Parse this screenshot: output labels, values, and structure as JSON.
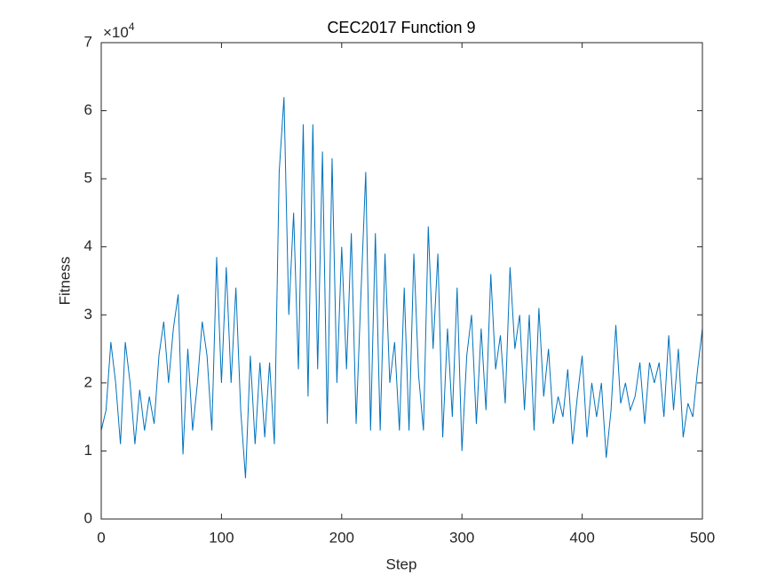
{
  "chart_data": {
    "type": "line",
    "title": "CEC2017 Function 9",
    "x_label": "Step",
    "y_label": "Fitness",
    "y_multiplier": {
      "base": "×10",
      "exponent": "4"
    },
    "x": [
      0,
      4,
      8,
      12,
      16,
      20,
      24,
      28,
      32,
      36,
      40,
      44,
      48,
      52,
      56,
      60,
      64,
      68,
      72,
      76,
      80,
      84,
      88,
      92,
      96,
      100,
      104,
      108,
      112,
      116,
      120,
      124,
      128,
      132,
      136,
      140,
      144,
      148,
      152,
      156,
      160,
      164,
      168,
      172,
      176,
      180,
      184,
      188,
      192,
      196,
      200,
      204,
      208,
      212,
      216,
      220,
      224,
      228,
      232,
      236,
      240,
      244,
      248,
      252,
      256,
      260,
      264,
      268,
      272,
      276,
      280,
      284,
      288,
      292,
      296,
      300,
      304,
      308,
      312,
      316,
      320,
      324,
      328,
      332,
      336,
      340,
      344,
      348,
      352,
      356,
      360,
      364,
      368,
      372,
      376,
      380,
      384,
      388,
      392,
      396,
      400,
      404,
      408,
      412,
      416,
      420,
      424,
      428,
      432,
      436,
      440,
      444,
      448,
      452,
      456,
      460,
      464,
      468,
      472,
      476,
      480,
      484,
      488,
      492,
      496,
      500
    ],
    "series": [
      {
        "name": "Fitness",
        "color": "#0072bd",
        "values": [
          1.3,
          1.6,
          2.6,
          2.0,
          1.1,
          2.6,
          2.0,
          1.1,
          1.9,
          1.3,
          1.8,
          1.4,
          2.4,
          2.9,
          2.0,
          2.8,
          3.3,
          0.95,
          2.5,
          1.3,
          2.0,
          2.9,
          2.4,
          1.3,
          3.85,
          2.0,
          3.7,
          2.0,
          3.4,
          1.6,
          0.6,
          2.4,
          1.1,
          2.3,
          1.2,
          2.3,
          1.1,
          5.1,
          6.2,
          3.0,
          4.5,
          2.2,
          5.8,
          1.8,
          5.8,
          2.2,
          5.4,
          1.4,
          5.3,
          2.0,
          4.0,
          2.2,
          4.2,
          1.4,
          3.3,
          5.1,
          1.3,
          4.2,
          1.3,
          3.9,
          2.0,
          2.6,
          1.3,
          3.4,
          1.3,
          3.9,
          2.1,
          1.3,
          4.3,
          2.5,
          3.9,
          1.2,
          2.8,
          1.5,
          3.4,
          1.0,
          2.4,
          3.0,
          1.4,
          2.8,
          1.6,
          3.6,
          2.2,
          2.7,
          1.7,
          3.7,
          2.5,
          3.0,
          1.6,
          3.0,
          1.3,
          3.1,
          1.8,
          2.5,
          1.4,
          1.8,
          1.5,
          2.2,
          1.1,
          1.8,
          2.4,
          1.2,
          2.0,
          1.5,
          2.0,
          0.9,
          1.6,
          2.85,
          1.7,
          2.0,
          1.6,
          1.8,
          2.3,
          1.4,
          2.3,
          2.0,
          2.3,
          1.5,
          2.7,
          1.6,
          2.5,
          1.2,
          1.7,
          1.5,
          2.2,
          2.8
        ]
      }
    ],
    "xlim": [
      0,
      500
    ],
    "xticks": [
      0,
      100,
      200,
      300,
      400,
      500
    ],
    "ylim": [
      0,
      7
    ],
    "yticks": [
      0,
      1,
      2,
      3,
      4,
      5,
      6,
      7
    ],
    "grid": false
  }
}
